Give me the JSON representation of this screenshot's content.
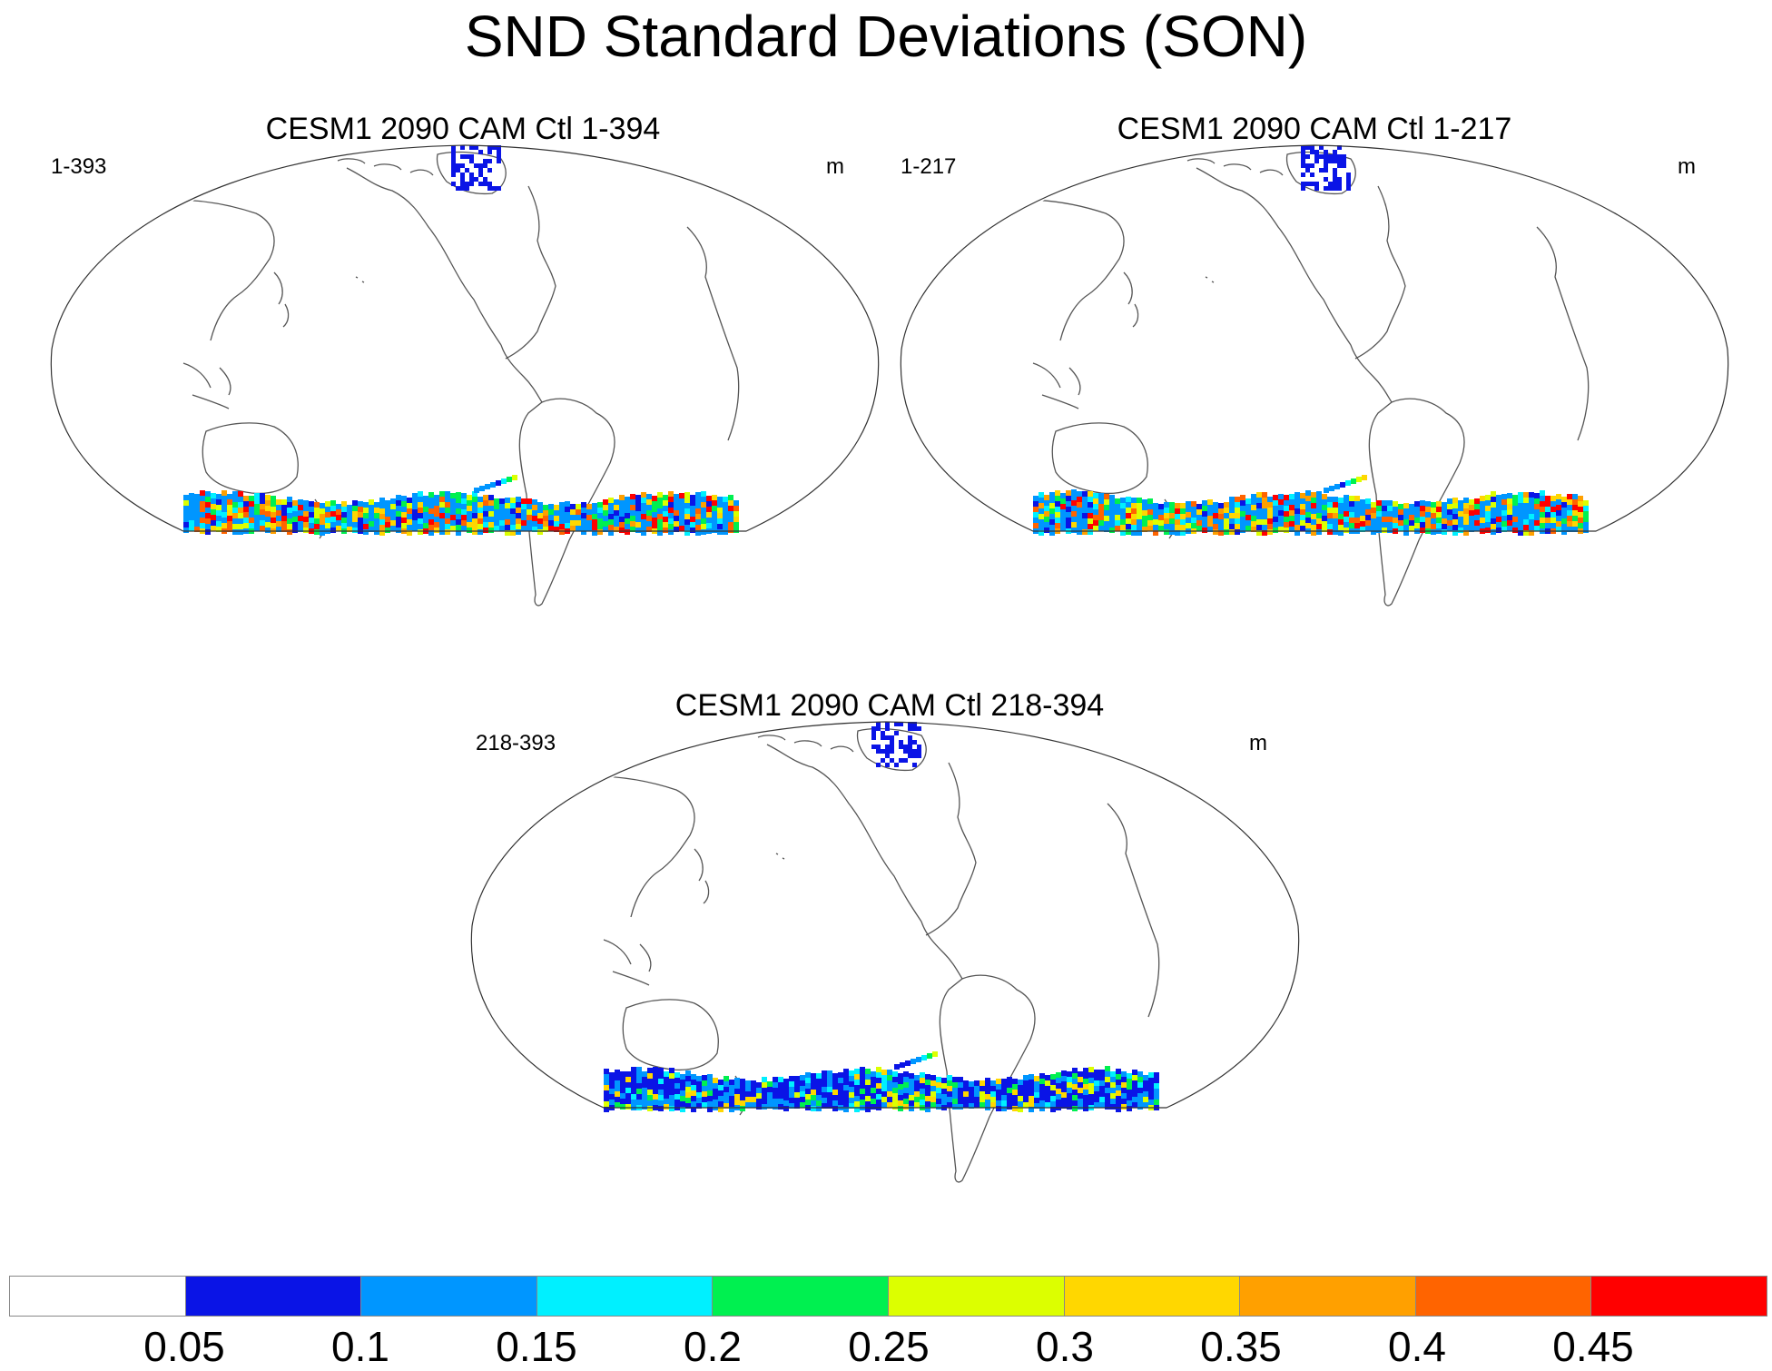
{
  "title": "SND Standard Deviations (SON)",
  "panels": [
    {
      "title": "CESM1 2090 CAM Ctl 1-394",
      "left_label": "1-393",
      "right_label": "m"
    },
    {
      "title": "CESM1 2090 CAM Ctl 1-217",
      "left_label": "1-217",
      "right_label": "m"
    },
    {
      "title": "CESM1 2090 CAM Ctl 218-394",
      "left_label": "218-393",
      "right_label": "m"
    }
  ],
  "colorbar": {
    "colors": [
      "#ffffff",
      "#0a14e6",
      "#0096ff",
      "#00f0ff",
      "#00f050",
      "#dcff00",
      "#ffd700",
      "#ffa000",
      "#ff6400",
      "#ff0000"
    ],
    "labels": [
      "0.05",
      "0.1",
      "0.15",
      "0.2",
      "0.25",
      "0.3",
      "0.35",
      "0.4",
      "0.45"
    ]
  }
}
